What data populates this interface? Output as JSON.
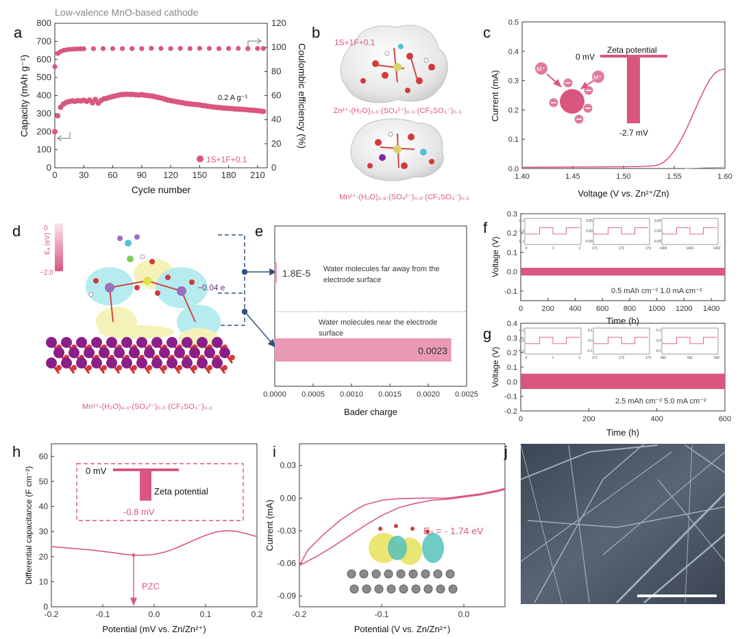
{
  "suptitle": "Low-valence MnO-based cathode",
  "colors": {
    "pink": "#d9577e",
    "pinkLight": "#ea9ab4",
    "purple": "#6a2a8a",
    "navy": "#31537a",
    "gray": "#888888"
  },
  "panels": {
    "a": {
      "letter": "a",
      "xlabel": "Cycle number",
      "ylabel": "Capacity (mAh g⁻¹)",
      "y2label": "Coulombic efficiency (%)",
      "xticks": [
        "0",
        "30",
        "60",
        "90",
        "120",
        "150",
        "180",
        "210"
      ],
      "yticks": [
        "0",
        "100",
        "200",
        "300",
        "400",
        "500",
        "600",
        "700",
        "800"
      ],
      "y2ticks": [
        "0",
        "20",
        "40",
        "60",
        "80",
        "100",
        "120"
      ],
      "annotation": "0.2 A g⁻¹",
      "legend": "1S+1F+0.1"
    },
    "b": {
      "letter": "b",
      "label1": "1S+1F+0.1",
      "formula1": "Zn²⁺-(H₂O)₃.₅·(SO₄²⁻)₀.₅·(CF₃SO₃⁻)₀.₅",
      "formula2": "Mn²⁺-(H₂O)₃.₆·(SO₄²⁻)₀.₅·(CF₃SO₃⁻)₀.₅"
    },
    "c": {
      "letter": "c",
      "xlabel": "Voltage (V vs. Zn²⁺/Zn)",
      "ylabel": "Current (mA)",
      "xticks": [
        "1.40",
        "1.45",
        "1.50",
        "1.55",
        "1.60"
      ],
      "yticks": [
        "0.0",
        "0.1",
        "0.2",
        "0.3",
        "0.4",
        "0.5"
      ],
      "zeta_label": "Zeta potential",
      "zero_label": "0 mV",
      "value_label": "-2.7 mV",
      "ion": "M⁺"
    },
    "d": {
      "letter": "d",
      "cbar_label": "Eₐ (eV)",
      "cbar_top": "0",
      "cbar_bottom": "−2.0",
      "charge": "−0.04 e",
      "formula": "Mn²⁺-(H₂O)₄.₀·(SO₄²⁻)₀.₅·(CF₃SO₃⁻)₀.₅"
    },
    "e": {
      "letter": "e",
      "xlabel": "Bader charge",
      "xticks": [
        "0.0000",
        "0.0005",
        "0.0010",
        "0.0015",
        "0.0020",
        "0.0025"
      ],
      "bar1_value": "1.8E-5",
      "bar1_text1": "Water molecules far away from the",
      "bar1_text2": "electrode surface",
      "bar2_value": "0.0023",
      "bar2_text1": "Water molecules near the electrode",
      "bar2_text2": "surface"
    },
    "f": {
      "letter": "f",
      "xlabel": "Time (h)",
      "ylabel": "Voltage (V)",
      "xticks": [
        "0",
        "200",
        "400",
        "600",
        "800",
        "1000",
        "1200",
        "1400"
      ],
      "yticks": [
        "-0.1",
        "0.0",
        "0.1",
        "0.2",
        "0.3"
      ],
      "condition": "0.5 mAh cm⁻² 1.0 mA cm⁻²",
      "insets": [
        {
          "xt": [
            "0",
            "1",
            "2"
          ],
          "yt": [
            "0.1",
            "0.0",
            "-0.1"
          ]
        },
        {
          "xt": [
            "171",
            "172",
            "173"
          ],
          "yt": [
            "0.05",
            "0.00",
            "-0.05"
          ]
        },
        {
          "xt": [
            "1400",
            "1401",
            "1402"
          ],
          "yt": [
            "0.05",
            "0.00",
            "-0.05"
          ]
        }
      ]
    },
    "g": {
      "letter": "g",
      "xlabel": "Time (h)",
      "ylabel": "Voltage (V)",
      "xticks": [
        "0",
        "200",
        "400",
        "600"
      ],
      "yticks": [
        "-0.2",
        "-0.1",
        "0.0",
        "0.1",
        "0.2",
        "0.3",
        "0.4"
      ],
      "condition": "2.5 mAh cm⁻² 5.0 mA cm⁻²",
      "insets": [
        {
          "xt": [
            "0",
            "1",
            "2"
          ],
          "yt": [
            "0.1",
            "0.0",
            "-0.1"
          ]
        },
        {
          "xt": [
            "171",
            "172",
            "173"
          ],
          "yt": [
            "0.1",
            "0.0",
            "-0.1"
          ]
        },
        {
          "xt": [
            "590",
            "591",
            "592"
          ],
          "yt": [
            "0.1",
            "0.0",
            "-0.1"
          ]
        }
      ]
    },
    "h": {
      "letter": "h",
      "xlabel": "Potential (mV vs. Zn/Zn²⁺)",
      "ylabel": "Differential capacitance (F cm⁻²)",
      "xticks": [
        "-0.2",
        "-0.1",
        "0.0",
        "0.1",
        "0.2"
      ],
      "yticks": [
        "0",
        "10",
        "20",
        "30",
        "40",
        "50",
        "60"
      ],
      "zero_label": "0 mV",
      "zeta_label": "Zeta potential",
      "value_label": "-0.8 mV",
      "pzc": "PZC"
    },
    "i": {
      "letter": "i",
      "xlabel": "Potential (V vs. Zn/Zn²⁺)",
      "ylabel": "Current (mA)",
      "xticks": [
        "-0.2",
        "-0.1",
        "0.0"
      ],
      "yticks": [
        "-0.09",
        "-0.06",
        "-0.03",
        "0.00",
        "0.03"
      ],
      "ea": "Eₐ = - 1.74 eV"
    },
    "j": {
      "letter": "j"
    }
  },
  "chart_data": [
    {
      "panel": "a",
      "type": "scatter",
      "xlim": [
        0,
        220
      ],
      "ylim": [
        0,
        800
      ],
      "y2lim": [
        0,
        120
      ],
      "series": [
        {
          "name": "1S+1F+0.1",
          "axis": "capacity",
          "x": [
            0,
            3,
            6,
            9,
            12,
            15,
            18,
            21,
            24,
            27,
            30,
            33,
            36,
            39,
            42,
            45,
            48,
            51,
            54,
            57,
            60,
            63,
            66,
            69,
            72,
            75,
            78,
            81,
            84,
            87,
            90,
            93,
            96,
            99,
            102,
            105,
            108,
            111,
            114,
            117,
            120,
            123,
            126,
            129,
            132,
            135,
            138,
            141,
            144,
            147,
            150,
            153,
            156,
            159,
            162,
            165,
            168,
            171,
            174,
            177,
            180,
            183,
            186,
            189,
            192,
            195,
            198,
            201,
            204,
            207,
            210,
            213,
            216
          ],
          "y": [
            200,
            288,
            335,
            353,
            362,
            367,
            370,
            368,
            372,
            370,
            374,
            368,
            375,
            360,
            378,
            358,
            373,
            382,
            385,
            390,
            395,
            398,
            402,
            405,
            406,
            407,
            406,
            406,
            404,
            403,
            405,
            402,
            400,
            398,
            396,
            392,
            388,
            385,
            380,
            375,
            372,
            369,
            366,
            363,
            360,
            357,
            355,
            353,
            351,
            350,
            348,
            345,
            343,
            340,
            338,
            336,
            334,
            333,
            331,
            330,
            329,
            328,
            326,
            325,
            324,
            323,
            322,
            320,
            319,
            318,
            316,
            314,
            312
          ]
        },
        {
          "name": "Coulombic efficiency",
          "axis": "efficiency",
          "x": [
            0,
            3,
            6,
            9,
            12,
            15,
            18,
            21,
            24,
            27,
            30,
            40,
            50,
            60,
            70,
            80,
            90,
            100,
            110,
            120,
            130,
            140,
            150,
            160,
            170,
            180,
            190,
            200,
            210,
            216
          ],
          "y": [
            84,
            95,
            96.5,
            97.5,
            98,
            98.3,
            98.5,
            98.6,
            98.7,
            98.8,
            98.8,
            98.9,
            99,
            99,
            99,
            99,
            99,
            99.2,
            99.1,
            99,
            99.1,
            99,
            99.2,
            99.1,
            99,
            99.1,
            99.2,
            99,
            99.1,
            99.1
          ]
        }
      ]
    },
    {
      "panel": "c",
      "type": "line",
      "xlim": [
        1.4,
        1.6
      ],
      "ylim": [
        0,
        0.5
      ],
      "series": [
        {
          "name": "",
          "x": [
            1.4,
            1.45,
            1.5,
            1.52,
            1.53,
            1.535,
            1.54,
            1.545,
            1.55,
            1.555,
            1.56,
            1.565,
            1.57,
            1.575,
            1.58,
            1.585,
            1.59,
            1.595,
            1.6
          ],
          "y": [
            0.004,
            0.005,
            0.006,
            0.007,
            0.009,
            0.013,
            0.022,
            0.038,
            0.06,
            0.088,
            0.12,
            0.157,
            0.196,
            0.235,
            0.272,
            0.303,
            0.325,
            0.336,
            0.34
          ]
        }
      ]
    },
    {
      "panel": "e",
      "type": "bar",
      "orientation": "horizontal",
      "xlim": [
        0,
        0.0025
      ],
      "categories": [
        "Water molecules far away from the electrode surface",
        "Water molecules near the electrode surface"
      ],
      "values": [
        1.8e-05,
        0.0023
      ]
    },
    {
      "panel": "f",
      "type": "line",
      "xlim": [
        0,
        1500
      ],
      "ylim": [
        -0.15,
        0.3
      ],
      "band": [
        -0.02,
        0.02
      ]
    },
    {
      "panel": "g",
      "type": "line",
      "xlim": [
        0,
        600
      ],
      "ylim": [
        -0.2,
        0.4
      ],
      "band": [
        -0.05,
        0.055
      ]
    },
    {
      "panel": "h",
      "type": "line",
      "xlim": [
        -0.2,
        0.2
      ],
      "ylim": [
        0,
        65
      ],
      "pzc_x": -0.04,
      "series": [
        {
          "name": "",
          "x": [
            -0.2,
            -0.16,
            -0.12,
            -0.08,
            -0.06,
            -0.04,
            -0.02,
            0.0,
            0.02,
            0.04,
            0.06,
            0.08,
            0.1,
            0.12,
            0.14,
            0.16,
            0.18,
            0.2
          ],
          "y": [
            24,
            23.3,
            22.6,
            21.6,
            21.0,
            20.6,
            20.6,
            20.9,
            21.8,
            23.2,
            25.0,
            26.8,
            28.5,
            29.8,
            30.4,
            30.1,
            29.1,
            28.0
          ]
        }
      ]
    },
    {
      "panel": "i",
      "type": "line",
      "xlim": [
        -0.2,
        0.05
      ],
      "ylim": [
        -0.1,
        0.05
      ],
      "series": [
        {
          "name": "",
          "x": [
            -0.2,
            -0.18,
            -0.16,
            -0.14,
            -0.12,
            -0.1,
            -0.08,
            -0.06,
            -0.04,
            -0.02,
            0.0,
            0.02,
            0.04,
            0.05
          ],
          "y": [
            -0.062,
            -0.054,
            -0.045,
            -0.035,
            -0.025,
            -0.016,
            -0.009,
            -0.005,
            -0.002,
            -0.001,
            0.001,
            0.003,
            0.006,
            0.008
          ]
        },
        {
          "name": "",
          "x": [
            -0.2,
            -0.19,
            -0.17,
            -0.15,
            -0.13,
            -0.12,
            -0.1,
            -0.08,
            -0.05,
            -0.02,
            0.0,
            0.02,
            0.04,
            0.05
          ],
          "y": [
            -0.062,
            -0.048,
            -0.033,
            -0.02,
            -0.01,
            -0.006,
            -0.002,
            -0.0005,
            0.0,
            0.0,
            0.002,
            0.004,
            0.007,
            0.009
          ]
        }
      ]
    }
  ]
}
